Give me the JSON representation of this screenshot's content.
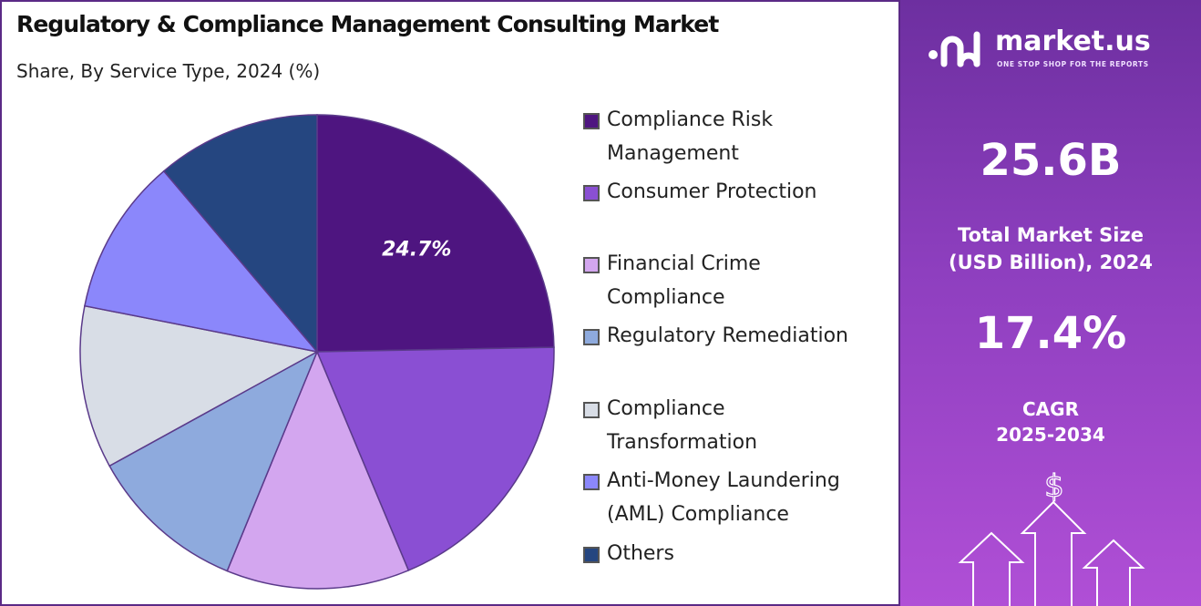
{
  "header": {
    "title": "Regulatory & Compliance Management Consulting Market",
    "subtitle": "Share, By Service Type, 2024 (%)"
  },
  "chart_data": {
    "type": "pie",
    "categories": [
      "Compliance Risk Management",
      "Consumer Protection",
      "Financial Crime Compliance",
      "Regulatory Remediation",
      "Compliance Transformation",
      "Anti-Money Laundering (AML) Compliance",
      "Others"
    ],
    "values": [
      24.7,
      19.0,
      12.5,
      10.8,
      11.1,
      10.7,
      11.2
    ],
    "colors": [
      "#4e1580",
      "#8a4fd3",
      "#d3a6ef",
      "#8eaadd",
      "#d8dde6",
      "#8b87fb",
      "#254680"
    ],
    "data_labels": [
      {
        "index": 0,
        "text": "24.7%"
      }
    ],
    "legend": {
      "placement": "right",
      "items": [
        {
          "lines": [
            "Compliance Risk",
            "Management"
          ],
          "color": "#4e1580"
        },
        {
          "lines": [
            "Consumer Protection"
          ],
          "color": "#8a4fd3"
        },
        {
          "lines": [
            "Financial Crime",
            "Compliance"
          ],
          "color": "#d3a6ef"
        },
        {
          "lines": [
            "Regulatory Remediation"
          ],
          "color": "#8eaadd"
        },
        {
          "lines": [
            "Compliance",
            "Transformation"
          ],
          "color": "#d8dde6"
        },
        {
          "lines": [
            "Anti-Money Laundering",
            "(AML) Compliance"
          ],
          "color": "#8b87fb"
        },
        {
          "lines": [
            "Others"
          ],
          "color": "#254680"
        }
      ]
    }
  },
  "sidebar": {
    "brand_name": "market.us",
    "brand_tagline": "ONE STOP SHOP FOR THE REPORTS",
    "market_size_value": "25.6B",
    "market_size_label_line1": "Total Market Size",
    "market_size_label_line2": "(USD Billion), 2024",
    "cagr_value": "17.4%",
    "cagr_label_line1": "CAGR",
    "cagr_label_line2": "2025-2034",
    "currency_symbol": "$",
    "logo_icon": "market-us-logo-icon",
    "growth_icon": "growth-arrows-icon"
  }
}
